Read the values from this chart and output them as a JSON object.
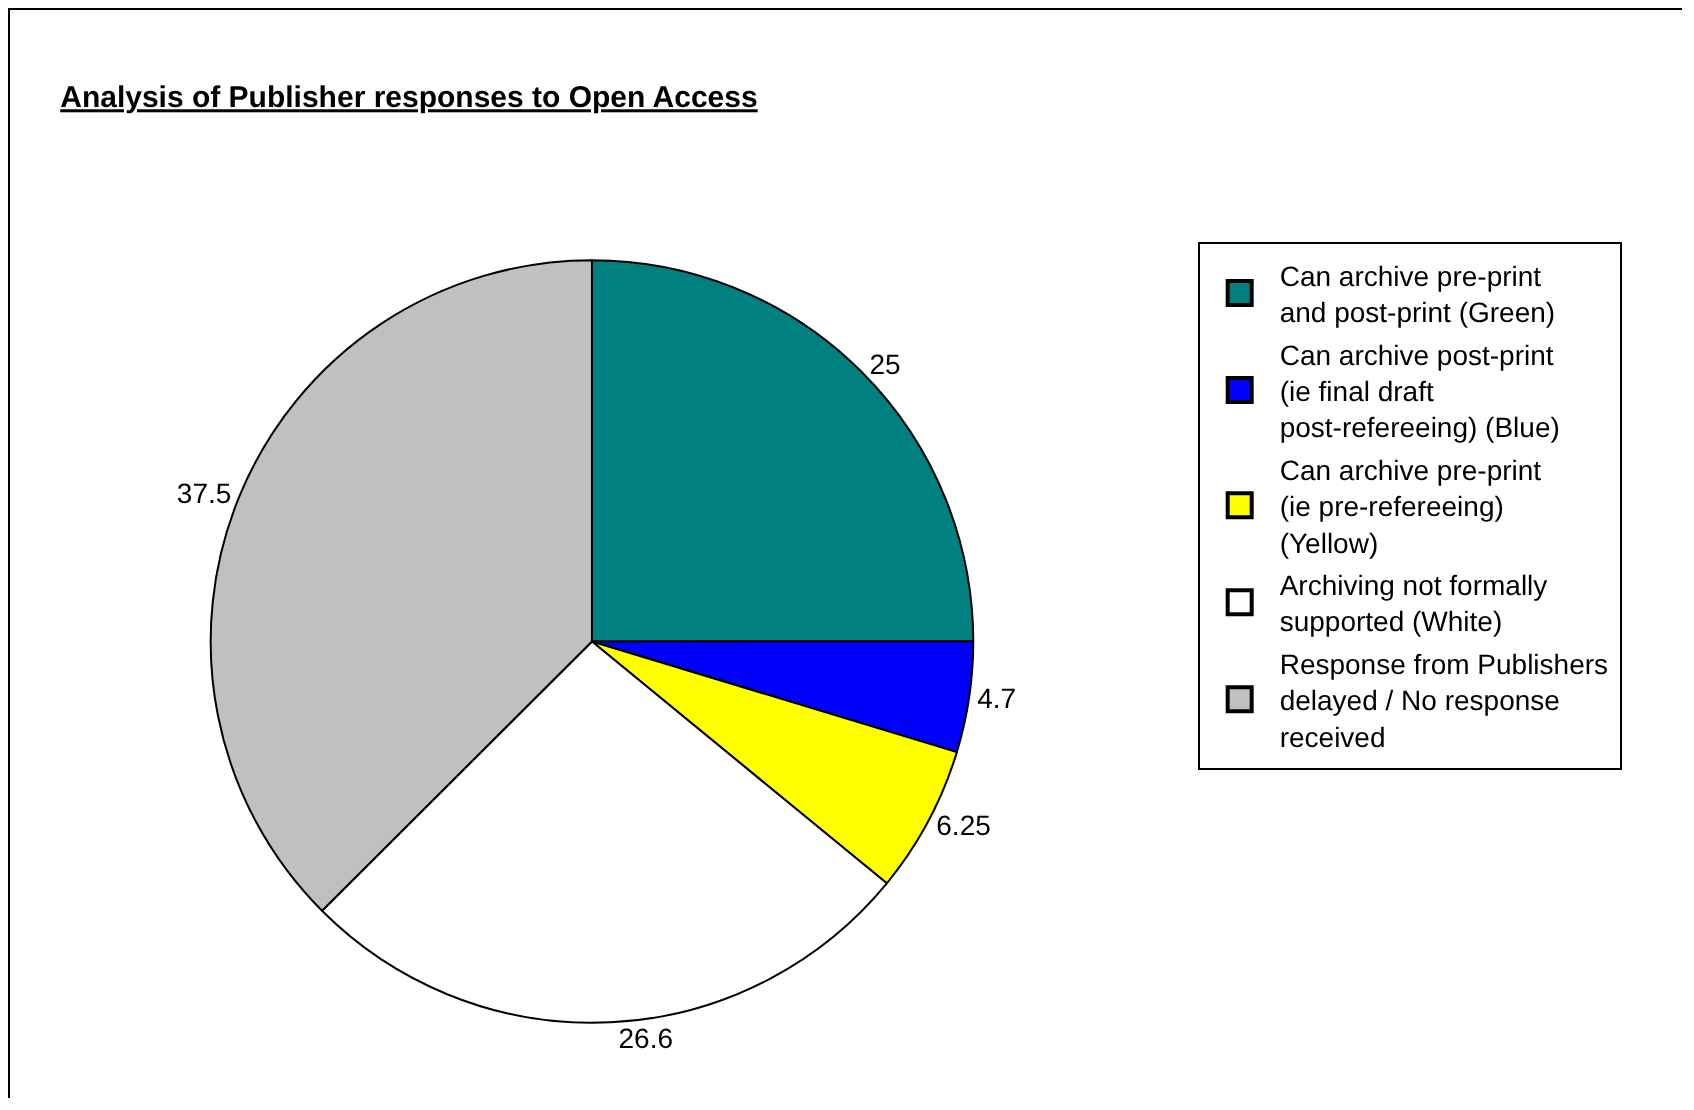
{
  "chart_data": {
    "type": "pie",
    "title": "Analysis of Publisher responses to Open Access",
    "categories": [
      "Can archive pre-print and post-print (Green)",
      "Can archive post-print (ie final draft post-refereeing) (Blue)",
      "Can archive pre-print (ie pre-refereeing) (Yellow)",
      "Archiving not formally supported (White)",
      "Response from Publishers delayed / No response received"
    ],
    "values": [
      25,
      4.7,
      6.25,
      26.6,
      37.5
    ],
    "colors": [
      "#008080",
      "#0000ff",
      "#ffff00",
      "#ffffff",
      "#c0c0c0"
    ],
    "data_labels": true,
    "legend": "right"
  }
}
